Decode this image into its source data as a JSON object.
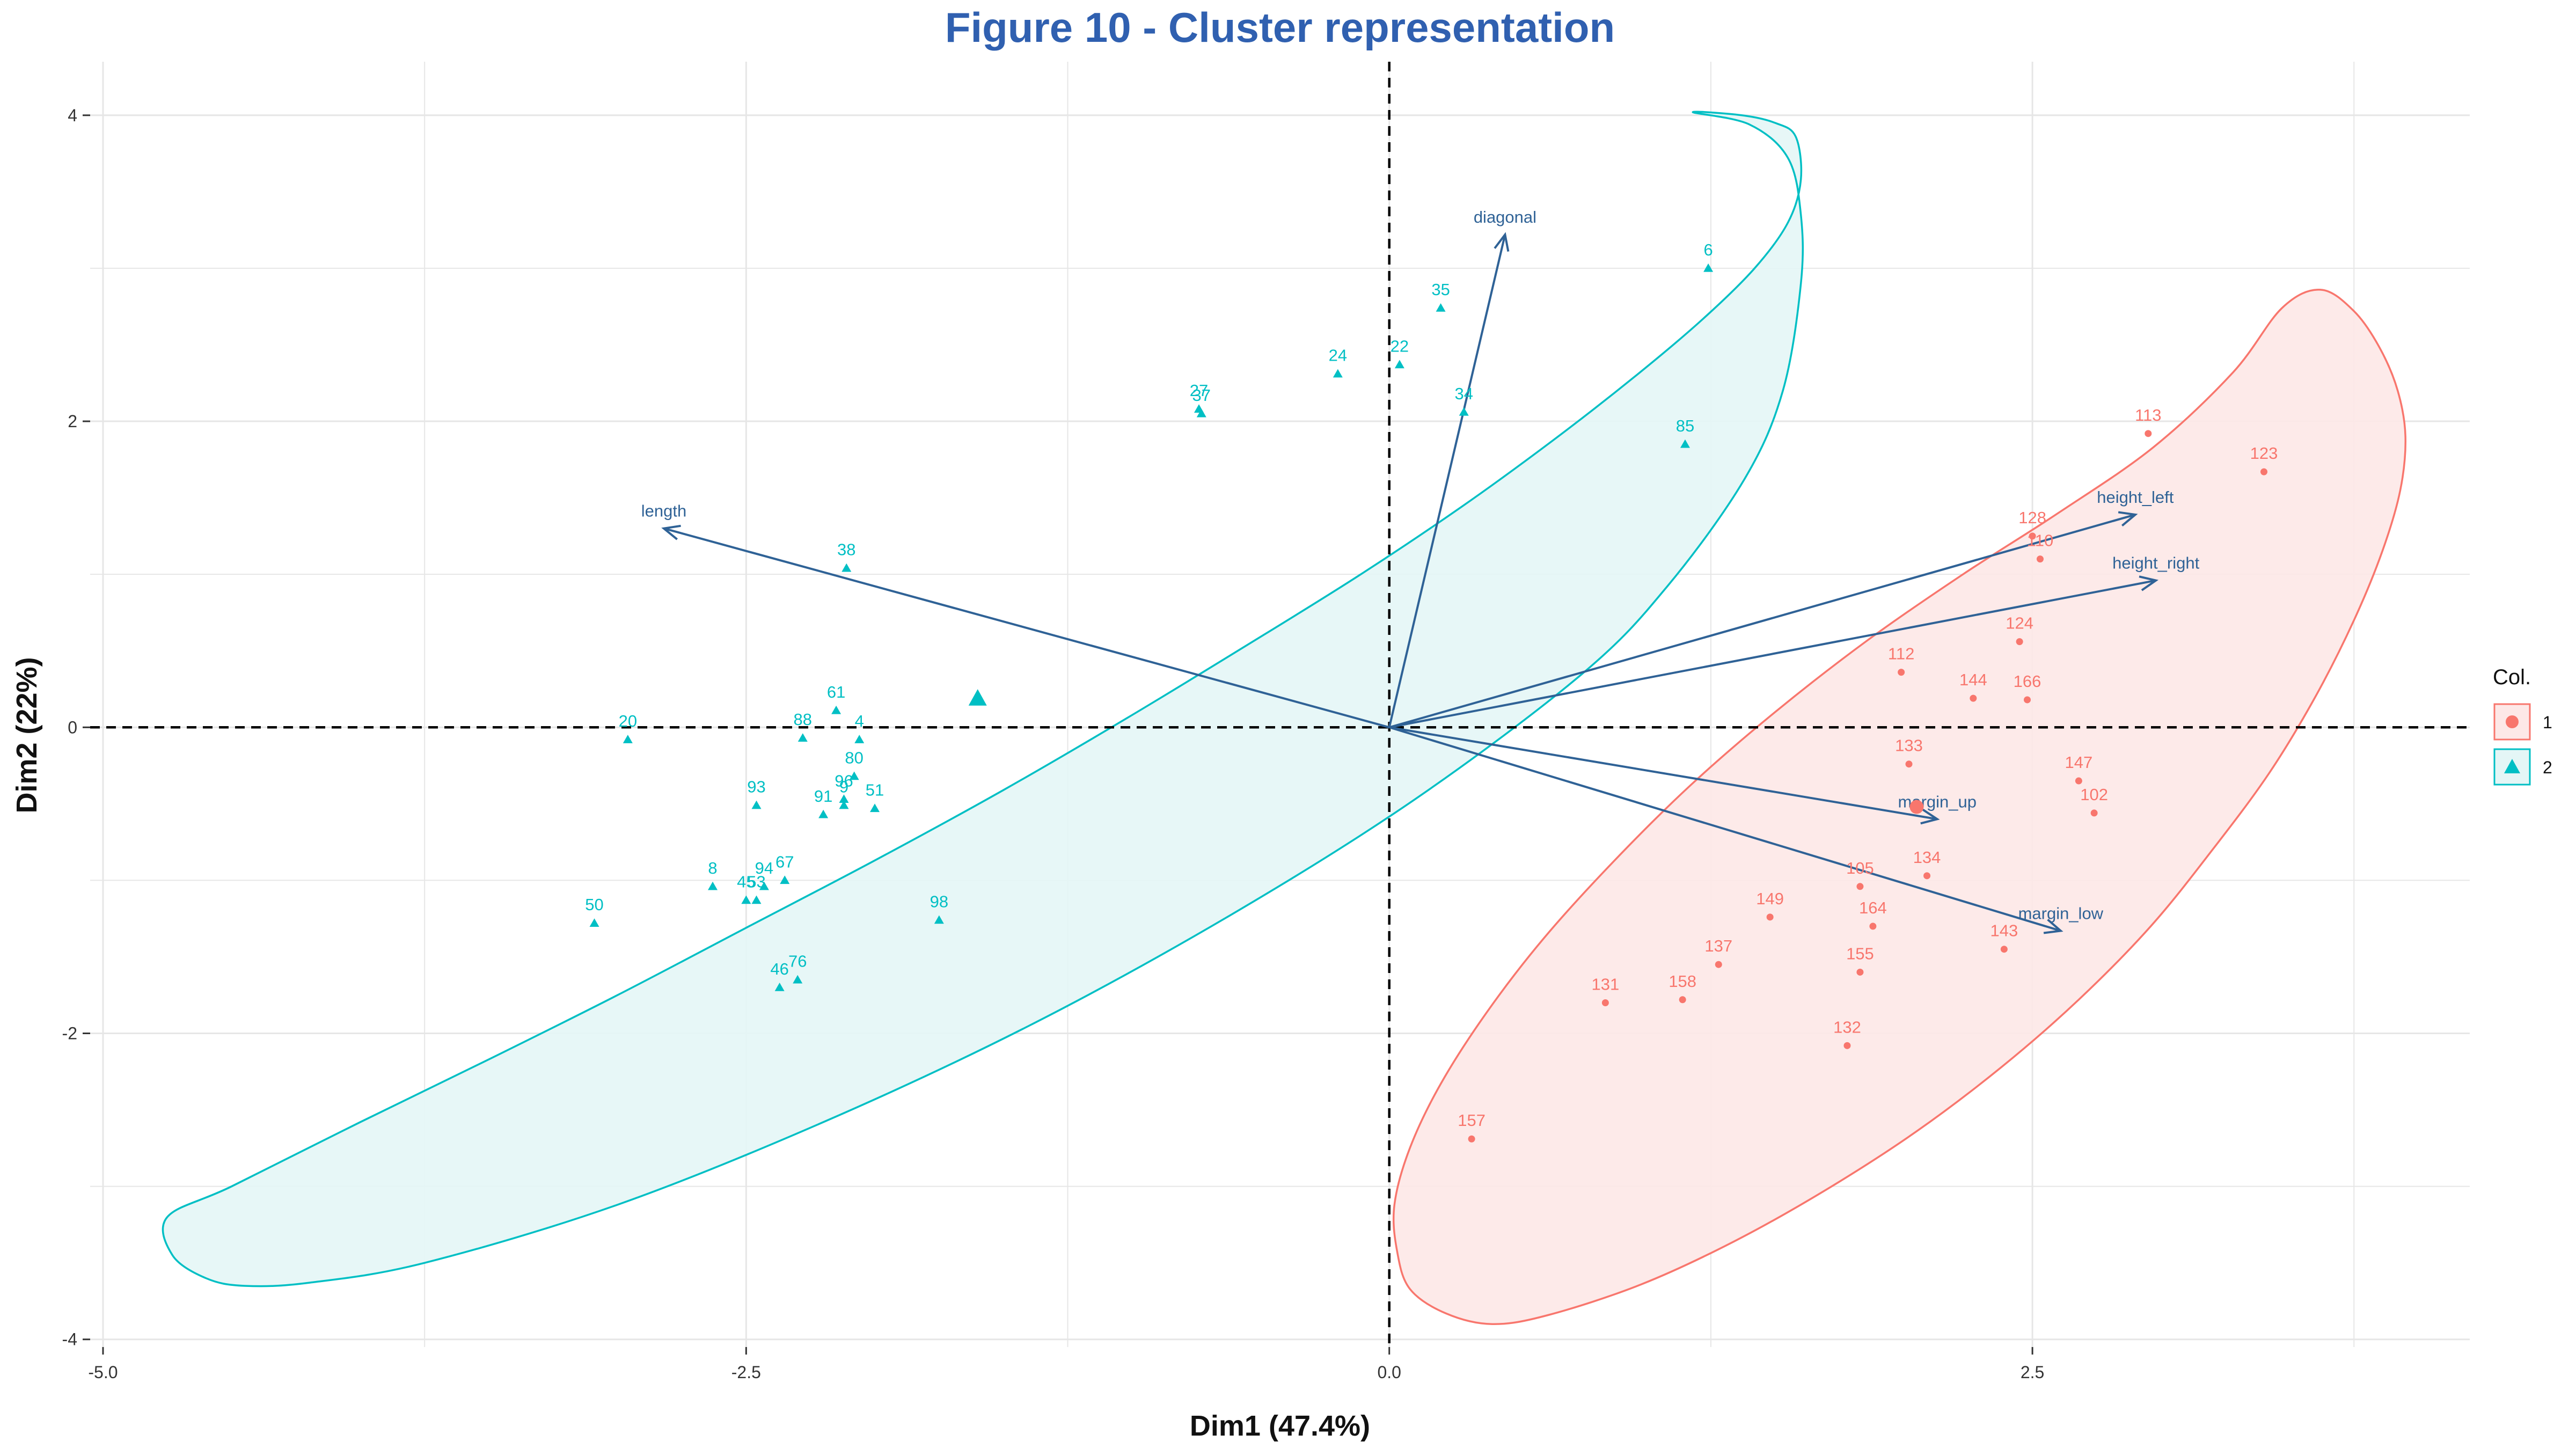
{
  "title": "Figure 10 - Cluster representation",
  "colors": {
    "title": "#3060b0",
    "cluster_1": "#F8766D",
    "cluster_2": "#00BFC4",
    "cluster_1_fill": "#fde8e7",
    "cluster_2_fill": "#e4f6f6",
    "arrows": "#2f6296",
    "grid": "#e6e6e6"
  },
  "chart_data": {
    "type": "scatter",
    "title": "Figure 10 - Cluster representation",
    "xlabel": "Dim1 (47.4%)",
    "ylabel": "Dim2 (22%)",
    "xlim": [
      -5.05,
      4.2
    ],
    "ylim": [
      -4.05,
      4.35
    ],
    "x_ticks": [
      -5.0,
      -2.5,
      0.0,
      2.5
    ],
    "x_tick_labels": [
      "-5.0",
      "-2.5",
      "0.0",
      "2.5"
    ],
    "y_ticks": [
      -4,
      -2,
      0,
      2,
      4
    ],
    "y_tick_labels": [
      "-4",
      "-2",
      "0",
      "2",
      "4"
    ],
    "grid": true,
    "reference_lines": [
      "x = 0",
      "y = 0"
    ],
    "legend": {
      "title": "Col.",
      "position": "right",
      "entries": [
        "1",
        "2"
      ]
    },
    "series": [
      {
        "name": "1",
        "marker": "circle",
        "points": [
          {
            "label": "113",
            "x": 2.95,
            "y": 1.92
          },
          {
            "label": "123",
            "x": 3.4,
            "y": 1.67
          },
          {
            "label": "128",
            "x": 2.5,
            "y": 1.25
          },
          {
            "label": "110",
            "x": 2.53,
            "y": 1.1
          },
          {
            "label": "124",
            "x": 2.45,
            "y": 0.56
          },
          {
            "label": "112",
            "x": 1.99,
            "y": 0.36
          },
          {
            "label": "144",
            "x": 2.27,
            "y": 0.19
          },
          {
            "label": "166",
            "x": 2.48,
            "y": 0.18
          },
          {
            "label": "133",
            "x": 2.02,
            "y": -0.24
          },
          {
            "label": "147",
            "x": 2.68,
            "y": -0.35
          },
          {
            "label": "102",
            "x": 2.74,
            "y": -0.56
          },
          {
            "label": "134",
            "x": 2.09,
            "y": -0.97
          },
          {
            "label": "105",
            "x": 1.83,
            "y": -1.04
          },
          {
            "label": "149",
            "x": 1.48,
            "y": -1.24
          },
          {
            "label": "164",
            "x": 1.88,
            "y": -1.3
          },
          {
            "label": "143",
            "x": 2.39,
            "y": -1.45
          },
          {
            "label": "137",
            "x": 1.28,
            "y": -1.55
          },
          {
            "label": "155",
            "x": 1.83,
            "y": -1.6
          },
          {
            "label": "131",
            "x": 0.84,
            "y": -1.8
          },
          {
            "label": "158",
            "x": 1.14,
            "y": -1.78
          },
          {
            "label": "132",
            "x": 1.78,
            "y": -2.08
          },
          {
            "label": "157",
            "x": 0.32,
            "y": -2.69
          }
        ],
        "centroid": {
          "x": 2.05,
          "y": -0.52
        },
        "ellipse": [
          [
            3.62,
            2.86
          ],
          [
            3.75,
            2.72
          ],
          [
            3.85,
            2.48
          ],
          [
            3.92,
            2.2
          ],
          [
            3.95,
            1.9
          ],
          [
            3.93,
            1.55
          ],
          [
            3.86,
            1.15
          ],
          [
            3.75,
            0.7
          ],
          [
            3.6,
            0.2
          ],
          [
            3.42,
            -0.3
          ],
          [
            3.2,
            -0.8
          ],
          [
            2.96,
            -1.3
          ],
          [
            2.68,
            -1.78
          ],
          [
            2.38,
            -2.22
          ],
          [
            2.05,
            -2.64
          ],
          [
            1.7,
            -3.02
          ],
          [
            1.34,
            -3.36
          ],
          [
            0.98,
            -3.64
          ],
          [
            0.62,
            -3.84
          ],
          [
            0.4,
            -3.9
          ],
          [
            0.22,
            -3.83
          ],
          [
            0.08,
            -3.67
          ],
          [
            0.03,
            -3.42
          ],
          [
            0.02,
            -3.12
          ],
          [
            0.08,
            -2.75
          ],
          [
            0.2,
            -2.33
          ],
          [
            0.38,
            -1.86
          ],
          [
            0.6,
            -1.38
          ],
          [
            0.87,
            -0.88
          ],
          [
            1.17,
            -0.38
          ],
          [
            1.5,
            0.1
          ],
          [
            1.86,
            0.57
          ],
          [
            2.23,
            1.0
          ],
          [
            2.6,
            1.4
          ],
          [
            2.97,
            1.83
          ],
          [
            3.28,
            2.32
          ],
          [
            3.47,
            2.74
          ],
          [
            3.62,
            2.86
          ]
        ]
      },
      {
        "name": "2",
        "marker": "triangle",
        "points": [
          {
            "label": "6",
            "x": 1.24,
            "y": 3.0
          },
          {
            "label": "35",
            "x": 0.2,
            "y": 2.74
          },
          {
            "label": "22",
            "x": 0.04,
            "y": 2.37
          },
          {
            "label": "24",
            "x": -0.2,
            "y": 2.31
          },
          {
            "label": "27",
            "x": -0.74,
            "y": 2.08
          },
          {
            "label": "37",
            "x": -0.73,
            "y": 2.05
          },
          {
            "label": "34",
            "x": 0.29,
            "y": 2.06
          },
          {
            "label": "85",
            "x": 1.15,
            "y": 1.85
          },
          {
            "label": "38",
            "x": -2.11,
            "y": 1.04
          },
          {
            "label": "61",
            "x": -2.15,
            "y": 0.11
          },
          {
            "label": "20",
            "x": -2.96,
            "y": -0.08
          },
          {
            "label": "88",
            "x": -2.28,
            "y": -0.07
          },
          {
            "label": "4",
            "x": -2.06,
            "y": -0.08
          },
          {
            "label": "80",
            "x": -2.08,
            "y": -0.32
          },
          {
            "label": "96",
            "x": -2.12,
            "y": -0.47
          },
          {
            "label": "93",
            "x": -2.46,
            "y": -0.51
          },
          {
            "label": "91",
            "x": -2.2,
            "y": -0.57
          },
          {
            "label": "9",
            "x": -2.12,
            "y": -0.51
          },
          {
            "label": "51",
            "x": -2.0,
            "y": -0.53
          },
          {
            "label": "8",
            "x": -2.63,
            "y": -1.04
          },
          {
            "label": "94",
            "x": -2.43,
            "y": -1.04
          },
          {
            "label": "67",
            "x": -2.35,
            "y": -1.0
          },
          {
            "label": "45",
            "x": -2.5,
            "y": -1.13
          },
          {
            "label": "53",
            "x": -2.46,
            "y": -1.13
          },
          {
            "label": "50",
            "x": -3.09,
            "y": -1.28
          },
          {
            "label": "98",
            "x": -1.75,
            "y": -1.26
          },
          {
            "label": "76",
            "x": -2.3,
            "y": -1.65
          },
          {
            "label": "46",
            "x": -2.37,
            "y": -1.7
          }
        ],
        "centroid": {
          "x": -1.6,
          "y": 0.19
        },
        "ellipse": [
          [
            1.18,
            4.02
          ],
          [
            1.37,
            4.0
          ],
          [
            1.5,
            3.95
          ],
          [
            1.58,
            3.86
          ],
          [
            1.6,
            3.58
          ],
          [
            1.55,
            3.3
          ],
          [
            1.42,
            3.0
          ],
          [
            1.22,
            2.67
          ],
          [
            0.96,
            2.3
          ],
          [
            0.64,
            1.88
          ],
          [
            0.28,
            1.44
          ],
          [
            -0.12,
            0.99
          ],
          [
            -0.56,
            0.53
          ],
          [
            -1.02,
            0.06
          ],
          [
            -1.5,
            -0.41
          ],
          [
            -2.0,
            -0.87
          ],
          [
            -2.5,
            -1.31
          ],
          [
            -3.0,
            -1.75
          ],
          [
            -3.5,
            -2.17
          ],
          [
            -4.0,
            -2.58
          ],
          [
            -4.5,
            -3.0
          ],
          [
            -4.75,
            -3.2
          ],
          [
            -4.73,
            -3.45
          ],
          [
            -4.6,
            -3.6
          ],
          [
            -4.45,
            -3.65
          ],
          [
            -4.2,
            -3.63
          ],
          [
            -3.75,
            -3.5
          ],
          [
            -3.0,
            -3.12
          ],
          [
            -2.2,
            -2.58
          ],
          [
            -1.4,
            -1.95
          ],
          [
            -0.62,
            -1.23
          ],
          [
            0.1,
            -0.47
          ],
          [
            0.75,
            0.35
          ],
          [
            1.08,
            0.92
          ],
          [
            1.38,
            1.62
          ],
          [
            1.53,
            2.2
          ],
          [
            1.6,
            2.9
          ],
          [
            1.6,
            3.35
          ],
          [
            1.55,
            3.72
          ],
          [
            1.4,
            3.94
          ],
          [
            1.18,
            4.02
          ]
        ]
      }
    ],
    "variables": [
      {
        "label": "diagonal",
        "x": 0.45,
        "y": 3.22
      },
      {
        "label": "length",
        "x": -2.82,
        "y": 1.3
      },
      {
        "label": "height_left",
        "x": 2.9,
        "y": 1.39
      },
      {
        "label": "height_right",
        "x": 2.98,
        "y": 0.96
      },
      {
        "label": "margin_up",
        "x": 2.13,
        "y": -0.6
      },
      {
        "label": "margin_low",
        "x": 2.61,
        "y": -1.33
      }
    ]
  }
}
